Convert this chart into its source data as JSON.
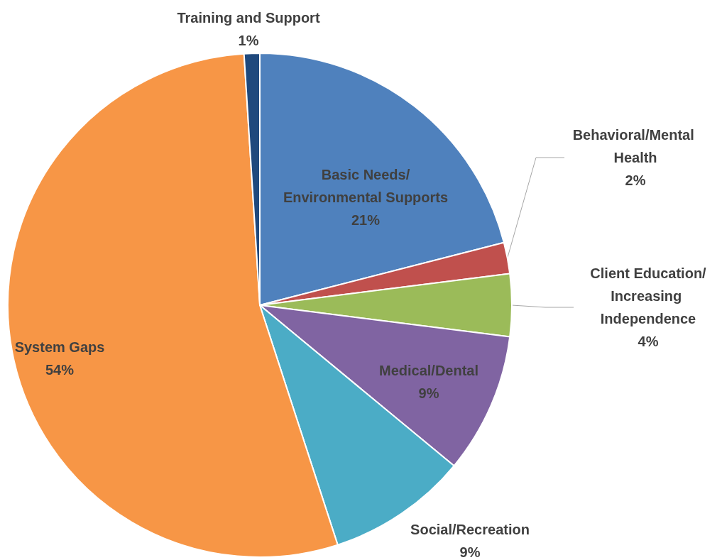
{
  "chart_data": {
    "type": "pie",
    "categories": [
      "Basic Needs/Environmental Supports",
      "Behavioral/Mental Health",
      "Client Education/Increasing Independence",
      "Medical/Dental",
      "Social/Recreation",
      "System Gaps",
      "Training and Support"
    ],
    "values": [
      21,
      2,
      4,
      9,
      9,
      54,
      1
    ],
    "value_labels": [
      "21%",
      "2%",
      "4%",
      "9%",
      "9%",
      "54%",
      "1%"
    ],
    "colors": [
      "#4f81bd",
      "#c0504d",
      "#9bbb59",
      "#8064a2",
      "#4bacc6",
      "#f79646",
      "#1f497d"
    ],
    "legend": false
  }
}
